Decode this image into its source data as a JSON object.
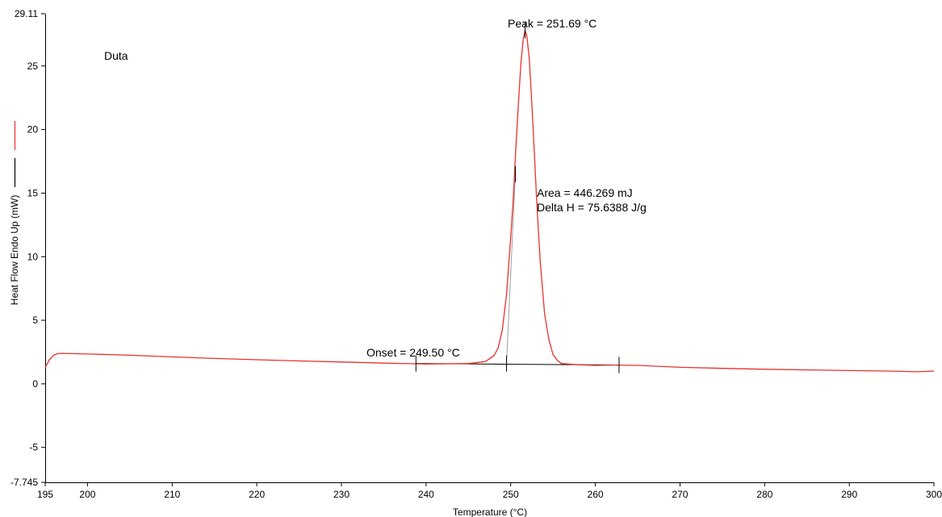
{
  "chart_data": {
    "type": "line",
    "title": "",
    "sample_label": "Duta",
    "xlabel": "Temperature (°C)",
    "ylabel": "Heat Flow Endo Up (mW)",
    "xlim": [
      195,
      300
    ],
    "ylim": [
      -7.745,
      29.11
    ],
    "x_tick_values": [
      195,
      200,
      210,
      220,
      230,
      240,
      250,
      260,
      270,
      280,
      290,
      300
    ],
    "x_tick_labels": [
      "195",
      "200",
      "210",
      "220",
      "230",
      "240",
      "250",
      "260",
      "270",
      "280",
      "290",
      "300"
    ],
    "y_tick_values": [
      29.11,
      25,
      20,
      15,
      10,
      5,
      0,
      -5,
      -7.745
    ],
    "y_tick_labels": [
      "29.11",
      "25",
      "20",
      "15",
      "10",
      "5",
      "0",
      "-5",
      "-7.745"
    ],
    "grid": false,
    "legend": "left-margin line swatches (red, black)",
    "colors": {
      "curve": "#e8312f",
      "baseline": "#000000",
      "tangent": "#a0a0a0",
      "axis": "#000000"
    },
    "series": [
      {
        "color": "#e8312f",
        "x": [
          195,
          195.5,
          196,
          196.5,
          197,
          200,
          205,
          210,
          215,
          220,
          225,
          230,
          235,
          240,
          245,
          247,
          248,
          248.5,
          249,
          249.5,
          250,
          250.3,
          250.6,
          250.9,
          251.2,
          251.5,
          251.69,
          251.9,
          252.2,
          252.5,
          252.8,
          253.1,
          253.5,
          254,
          254.5,
          255,
          255.5,
          256,
          258,
          260,
          262,
          265,
          270,
          275,
          280,
          285,
          290,
          295,
          298,
          300
        ],
        "y": [
          1.3,
          1.9,
          2.25,
          2.38,
          2.4,
          2.35,
          2.25,
          2.12,
          2.0,
          1.9,
          1.8,
          1.72,
          1.63,
          1.56,
          1.6,
          1.75,
          2.2,
          2.8,
          4.2,
          7.0,
          11.5,
          14.6,
          18.5,
          22.0,
          25.2,
          27.2,
          27.8,
          27.4,
          25.5,
          22.0,
          18.0,
          14.0,
          9.5,
          5.5,
          3.5,
          2.3,
          1.85,
          1.6,
          1.5,
          1.45,
          1.48,
          1.45,
          1.3,
          1.22,
          1.15,
          1.1,
          1.05,
          1.0,
          0.95,
          1.0
        ]
      }
    ],
    "baseline": {
      "x": [
        238.8,
        262.8
      ],
      "y": [
        1.6,
        1.48
      ]
    },
    "tangent": {
      "x": [
        249.5,
        250.55
      ],
      "y": [
        1.6,
        16.5
      ]
    },
    "markers": [
      {
        "x": 238.8,
        "y": 1.6
      },
      {
        "x": 249.5,
        "y": 1.6
      },
      {
        "x": 262.8,
        "y": 1.48
      },
      {
        "x": 250.55,
        "y": 16.5
      },
      {
        "x": 251.69,
        "y": 27.8
      }
    ],
    "annotations": {
      "peak": "Peak = 251.69 °C",
      "area": "Area = 446.269 mJ",
      "delta_h": "Delta H = 75.6388 J/g",
      "onset": "Onset = 249.50 °C"
    }
  }
}
